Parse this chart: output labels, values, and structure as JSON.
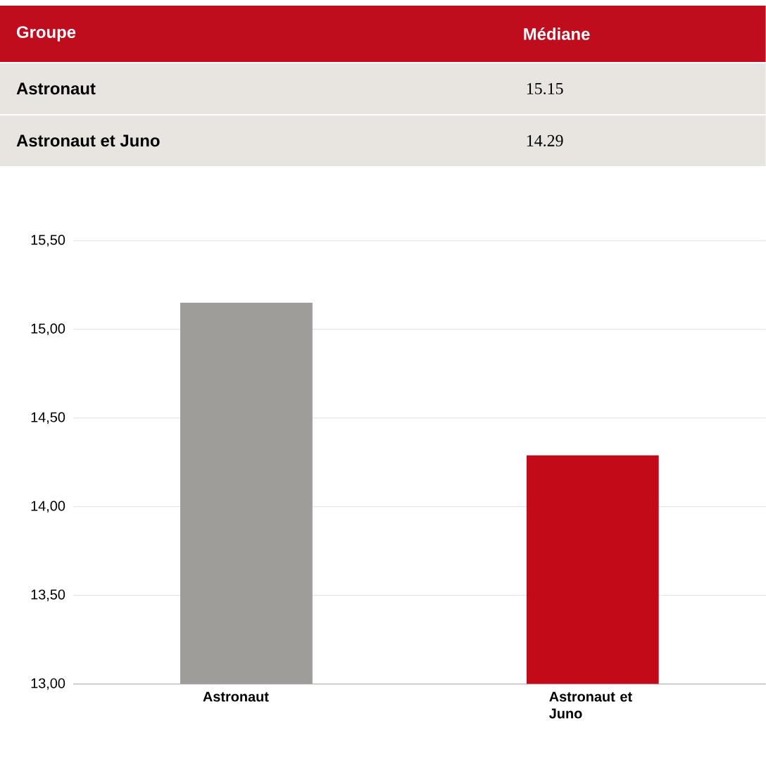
{
  "chart_data": {
    "type": "bar",
    "categories": [
      "Astronaut",
      "Astronaut et Juno"
    ],
    "values": [
      15.15,
      14.29
    ],
    "colors": [
      "#9e9d99",
      "#c20a19"
    ],
    "annotations": [
      "Groupe",
      "Médiane",
      "15.15",
      "14.29"
    ],
    "ylim": [
      13,
      15.5
    ],
    "yticks": [
      {
        "value": 13,
        "label": "13,00"
      },
      {
        "value": 13.5,
        "label": "13,50"
      },
      {
        "value": 14,
        "label": "14,00"
      },
      {
        "value": 14.5,
        "label": "14,50"
      },
      {
        "value": 15,
        "label": "15,00"
      },
      {
        "value": 15.5,
        "label": "15,50"
      }
    ],
    "grid": "y"
  }
}
